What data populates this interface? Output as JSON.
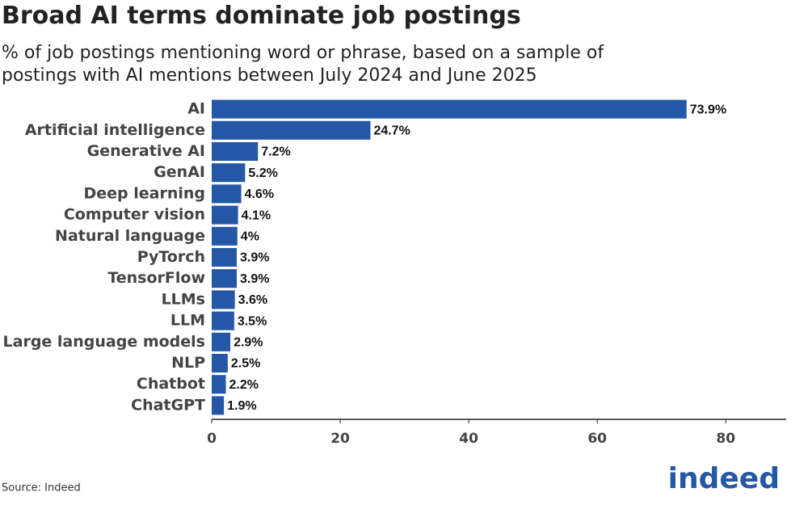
{
  "chart_data": {
    "type": "bar",
    "orientation": "horizontal",
    "title": "Broad AI terms dominate job postings",
    "subtitle": "% of job postings mentioning word or phrase, based on a sample of postings with AI mentions between July 2024 and June 2025",
    "categories": [
      "AI",
      "Artificial intelligence",
      "Generative AI",
      "GenAI",
      "Deep learning",
      "Computer vision",
      "Natural language",
      "PyTorch",
      "TensorFlow",
      "LLMs",
      "LLM",
      "Large language models",
      "NLP",
      "Chatbot",
      "ChatGPT"
    ],
    "values": [
      73.9,
      24.7,
      7.2,
      5.2,
      4.6,
      4.1,
      4,
      3.9,
      3.9,
      3.6,
      3.5,
      2.9,
      2.5,
      2.2,
      1.9
    ],
    "value_labels": [
      "73.9%",
      "24.7%",
      "7.2%",
      "5.2%",
      "4.6%",
      "4.1%",
      "4%",
      "3.9%",
      "3.9%",
      "3.6%",
      "3.5%",
      "2.9%",
      "2.5%",
      "2.2%",
      "1.9%"
    ],
    "color": "#2557a7",
    "xlim": [
      0,
      89.4
    ],
    "xticks": [
      0,
      20,
      40,
      60,
      80
    ],
    "source": "Source: Indeed",
    "logo": "indeed"
  }
}
